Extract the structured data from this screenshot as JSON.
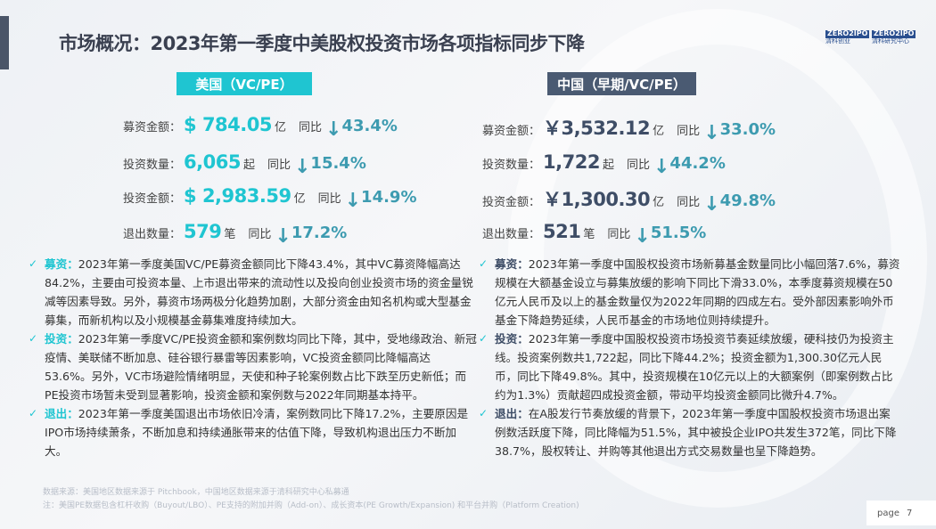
{
  "title": "市场概况：2023年第一季度中美股权投资市场各项指标同步下降",
  "logo": {
    "left_brand": "ZERO2IPO",
    "left_cn": "清科创业",
    "right_brand": "ZERO2IPO",
    "right_cn": "清科研究中心"
  },
  "us": {
    "tag": "美国（VC/PE）",
    "stats": [
      {
        "label": "募资金额：",
        "num": "$ 784.05",
        "unit": "亿",
        "yoy": "同比",
        "pct": "43.4%"
      },
      {
        "label": "投资数量：",
        "num": "6,065",
        "unit": "起",
        "yoy": "同比",
        "pct": "15.4%"
      },
      {
        "label": "投资金额：",
        "num": "$ 2,983.59",
        "unit": "亿",
        "yoy": "同比",
        "pct": "14.9%"
      },
      {
        "label": "退出数量：",
        "num": "579",
        "unit": "笔",
        "yoy": "同比",
        "pct": "17.2%"
      }
    ],
    "bullets": [
      {
        "head": "募资：",
        "text": "2023年第一季度美国VC/PE募资金额同比下降43.4%，其中VC募资降幅高达84.2%，主要由可投资本量、上市退出带来的流动性以及投向创业投资市场的资金量锐减等因素导致。另外，募资市场两极分化趋势加剧，大部分资金由知名机构或大型基金募集，而新机构以及小规模基金募集难度持续加大。"
      },
      {
        "head": "投资：",
        "text": "2023年第一季度VC/PE投资金额和案例数均同比下降，其中，受地缘政治、新冠疫情、美联储不断加息、硅谷银行暴雷等因素影响，VC投资金额同比降幅高达53.6%。另外，VC市场避险情绪明显，天使和种子轮案例数占比下跌至历史新低；而PE投资市场暂未受到显著影响，投资金额和案例数与2022年同期基本持平。"
      },
      {
        "head": "退出：",
        "text": "2023年第一季度美国退出市场依旧冷清，案例数同比下降17.2%，主要原因是IPO市场持续萧条，不断加息和持续通胀带来的估值下降，导致机构退出压力不断加大。"
      }
    ]
  },
  "cn": {
    "tag": "中国（早期/VC/PE）",
    "stats": [
      {
        "label": "募资金额：",
        "num": "￥3,532.12",
        "unit": "亿",
        "yoy": "同比",
        "pct": "33.0%"
      },
      {
        "label": "投资数量：",
        "num": "1,722",
        "unit": "起",
        "yoy": "同比",
        "pct": "44.2%"
      },
      {
        "label": "投资金额：",
        "num": "￥1,300.30",
        "unit": "亿",
        "yoy": "同比",
        "pct": "49.8%"
      },
      {
        "label": "退出数量：",
        "num": "521",
        "unit": "笔",
        "yoy": "同比",
        "pct": "51.5%"
      }
    ],
    "bullets": [
      {
        "head": "募资：",
        "text": "2023年第一季度中国股权投资市场新募基金数量同比小幅回落7.6%，募资规模在大额基金设立与募集放缓的影响下同比下滑33.0%，本季度募资规模在50亿元人民币及以上的基金数量仅为2022年同期的四成左右。受外部因素影响外币基金下降趋势延续，人民币基金的市场地位则持续提升。"
      },
      {
        "head": "投资：",
        "text": "2023年第一季度中国股权投资市场投资节奏延续放缓，硬科技仍为投资主线。投资案例数共1,722起，同比下降44.2%；投资金额为1,300.30亿元人民币，同比下降49.8%。其中，投资规模在10亿元以上的大额案例（即案例数占比约为1.3%）贡献超四成投资金额，带动平均投资金额同比微升4.7%。"
      },
      {
        "head": "退出：",
        "text": "在A股发行节奏放缓的背景下，2023年第一季度中国股权投资市场退出案例数活跃度下降，同比降幅为51.5%，其中被投企业IPO共发生372笔，同比下降38.7%，股权转让、并购等其他退出方式交易数量也呈下降趋势。"
      }
    ]
  },
  "footnotes": [
    "数据来源：美国地区数据来源于 Pitchbook，中国地区数据来源于清科研究中心私募通",
    "注：美国PE数据包含杠杆收购（Buyout/LBO）、PE支持的附加并购（Add-on）、成长资本(PE Growth/Expansion) 和平台并购（Platform Creation)"
  ],
  "page": {
    "label": "page",
    "number": "7"
  },
  "colors": {
    "us": "#1fc5d1",
    "cn": "#3e4d66",
    "pct": "#3d9bb0"
  },
  "icons": {
    "check": "check-icon",
    "arrow": "arrow-down-icon"
  }
}
